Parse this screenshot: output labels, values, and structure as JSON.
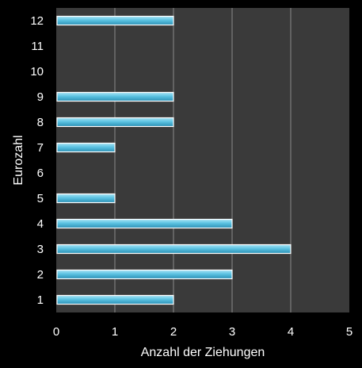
{
  "chart_data": {
    "type": "bar",
    "orientation": "horizontal",
    "categories": [
      "1",
      "2",
      "3",
      "4",
      "5",
      "6",
      "7",
      "8",
      "9",
      "10",
      "11",
      "12"
    ],
    "values": [
      2,
      3,
      4,
      3,
      1,
      0,
      1,
      2,
      2,
      0,
      0,
      2
    ],
    "title": "",
    "xlabel": "Anzahl der Ziehungen",
    "ylabel": "Eurozahl",
    "xlim": [
      0,
      5
    ],
    "xticks": [
      0,
      1,
      2,
      3,
      4,
      5
    ],
    "grid": "vertical",
    "legend": "none"
  },
  "colors": {
    "background": "#000000",
    "plot_area": "#3a3a3a",
    "gridline": "#8a8a8a",
    "bar_light": "#a9e3f4",
    "bar_mid": "#5cc3e2",
    "bar_dark": "#2a8fb4",
    "bar_edge": "#ffffff",
    "text": "#ffffff"
  }
}
